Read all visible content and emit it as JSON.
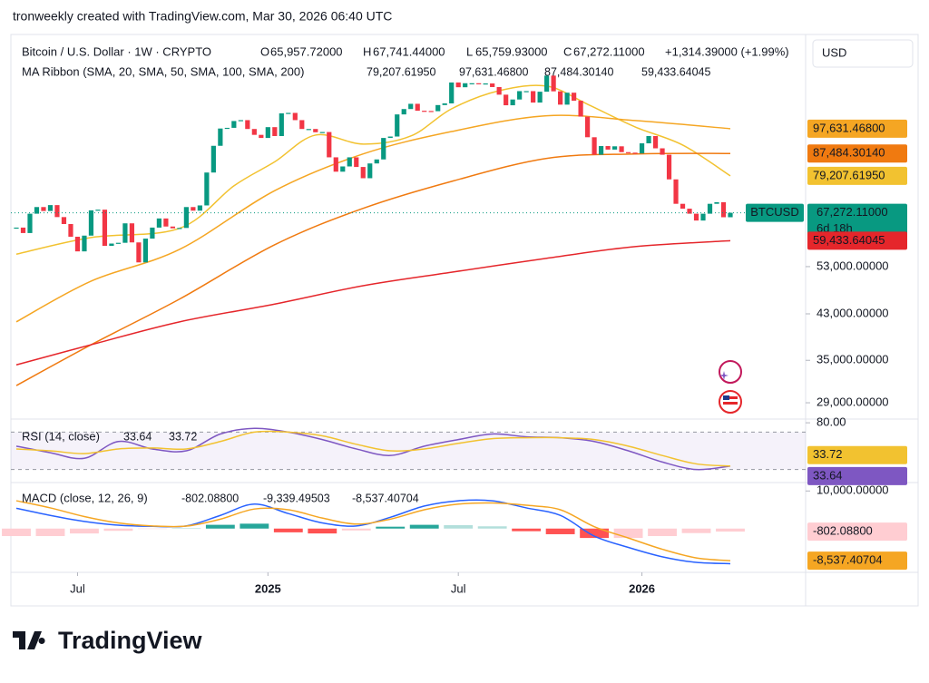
{
  "header": {
    "attribution": "tronweekly created with TradingView.com, Mar 30, 2026 06:40 UTC",
    "currency": "USD",
    "logo": "TradingView"
  },
  "chart_data": [
    {
      "type": "candlestick",
      "title": "Bitcoin / U.S. Dollar · 1W · CRYPTO",
      "legend": [
        {
          "key": "O",
          "value": "65,957.72000"
        },
        {
          "key": "H",
          "value": "67,741.44000"
        },
        {
          "key": "L",
          "value": "65,759.93000"
        },
        {
          "key": "C",
          "value": "67,272.11000"
        }
      ],
      "change": "+1,314.39000 (+1.99%)",
      "log_scale": true,
      "ylim": [
        27200,
        147000
      ],
      "yticks": [
        {
          "value": 53000,
          "label": "53,000.00000"
        },
        {
          "value": 43000,
          "label": "43,000.00000"
        },
        {
          "value": 35000,
          "label": "35,000.00000"
        },
        {
          "value": 29000,
          "label": "29,000.00000"
        }
      ],
      "xticks": [
        {
          "value": 9,
          "label": "Jul"
        },
        {
          "value": 37,
          "label": "2025"
        },
        {
          "value": 65,
          "label": "Jul"
        },
        {
          "value": 92,
          "label": "2026"
        }
      ],
      "up_color": "#089981",
      "down_color": "#f23645",
      "values": [
        63000,
        61500,
        67000,
        69000,
        67800,
        69600,
        66000,
        64000,
        60500,
        56700,
        60800,
        68000,
        68200,
        58100,
        58700,
        58900,
        64200,
        59000,
        54000,
        60000,
        63000,
        65600,
        63300,
        62800,
        62900,
        69000,
        67900,
        69500,
        80400,
        90500,
        97700,
        98000,
        101000,
        101400,
        97500,
        95000,
        93700,
        98300,
        94500,
        104500,
        104700,
        101400,
        97500,
        97500,
        96100,
        96200,
        86000,
        80700,
        82600,
        86000,
        82400,
        78400,
        83700,
        85200,
        93700,
        94300,
        104000,
        106500,
        109000,
        105700,
        105600,
        105500,
        108400,
        109200,
        119800,
        117300,
        119400,
        119400,
        119100,
        119300,
        117400,
        113500,
        108300,
        111100,
        115300,
        115300,
        109600,
        115000,
        123500,
        115200,
        108600,
        114500,
        110500,
        103000,
        94000,
        87000,
        90400,
        89000,
        90300,
        88000,
        87800,
        87500,
        91500,
        94500,
        89500,
        87000,
        78000,
        70000,
        68500,
        67000,
        65000,
        67000,
        70000,
        70500,
        65957.72,
        67272.11
      ],
      "price_tag": {
        "symbol": "BTCUSD",
        "value": 67272.11,
        "label": "67,272.11000",
        "countdown": "6d 18h"
      },
      "ma_title": "MA Ribbon (SMA, 20, SMA, 50, SMA, 100, SMA, 200)",
      "ma_series": [
        {
          "color": "#f2c230",
          "x": [
            0,
            11,
            24,
            32,
            38,
            44,
            51,
            58,
            64,
            71,
            78,
            84,
            91,
            98,
            105
          ],
          "values": [
            56000,
            60300,
            62800,
            75800,
            84300,
            94900,
            91200,
            94500,
            106600,
            115500,
            117900,
            108800,
            98400,
            90800,
            79207.6195
          ],
          "value_labels": [
            null,
            null,
            null,
            null,
            null,
            null,
            null,
            null,
            null,
            null,
            null,
            null,
            null,
            null,
            "79,207.61950"
          ]
        },
        {
          "color": "#f5a623",
          "x": [
            0,
            11,
            24,
            38,
            51,
            64,
            78,
            91,
            105
          ],
          "values": [
            41500,
            49700,
            57200,
            74200,
            87300,
            96400,
            103400,
            101200,
            97631.468
          ],
          "value_labels": [
            null,
            null,
            null,
            null,
            null,
            null,
            null,
            null,
            "97,631.46800"
          ]
        },
        {
          "color": "#f07a10",
          "x": [
            0,
            11,
            24,
            38,
            51,
            64,
            78,
            91,
            105
          ],
          "values": [
            31300,
            37500,
            45900,
            58400,
            68600,
            77300,
            85600,
            87300,
            87484.3014
          ],
          "value_labels": [
            null,
            null,
            null,
            null,
            null,
            null,
            null,
            null,
            "87,484.30140"
          ]
        },
        {
          "color": "#e5262b",
          "x": [
            0,
            11,
            24,
            38,
            51,
            64,
            78,
            91,
            105
          ],
          "values": [
            34300,
            37500,
            41500,
            44900,
            48700,
            51700,
            55000,
            57900,
            59433.64045
          ],
          "value_labels": [
            null,
            null,
            null,
            null,
            null,
            null,
            null,
            null,
            "59,433.64045"
          ]
        }
      ]
    },
    {
      "type": "line",
      "title": "RSI (14, close)",
      "ylim": [
        17,
        84
      ],
      "yticks": [
        {
          "value": 80,
          "label": "80.00"
        }
      ],
      "band": [
        30,
        70
      ],
      "series": [
        {
          "color": "#7e57c2",
          "x": [
            0,
            5,
            10,
            15,
            20,
            25,
            30,
            35,
            40,
            45,
            50,
            55,
            60,
            65,
            70,
            75,
            80,
            85,
            90,
            95,
            100,
            105
          ],
          "values": [
            55,
            48,
            42,
            60,
            52,
            50,
            68,
            74,
            70,
            62,
            52,
            45,
            55,
            62,
            68,
            65,
            64,
            60,
            50,
            38,
            30,
            33.64
          ],
          "value_labels": [
            null,
            null,
            null,
            null,
            null,
            null,
            null,
            null,
            null,
            null,
            null,
            null,
            null,
            null,
            null,
            null,
            null,
            null,
            null,
            null,
            null,
            "33.64"
          ]
        },
        {
          "color": "#f2c230",
          "x": [
            0,
            5,
            10,
            15,
            20,
            25,
            30,
            35,
            40,
            45,
            50,
            55,
            60,
            65,
            70,
            75,
            80,
            85,
            90,
            95,
            100,
            105
          ],
          "values": [
            52,
            50,
            47,
            52,
            53,
            52,
            60,
            70,
            70,
            66,
            57,
            50,
            52,
            58,
            63,
            64,
            64,
            62,
            55,
            45,
            36,
            33.72
          ],
          "value_labels": [
            null,
            null,
            null,
            null,
            null,
            null,
            null,
            null,
            null,
            null,
            null,
            null,
            null,
            null,
            null,
            null,
            null,
            null,
            null,
            null,
            null,
            "33.72"
          ]
        }
      ]
    },
    {
      "type": "macd",
      "title": "MACD (close, 12, 26, 9)",
      "ylim": [
        -11400,
        12000
      ],
      "yticks": [
        {
          "value": 10000,
          "label": "10,000.00000"
        }
      ],
      "histogram": {
        "colors": [
          "#26a69a",
          "#b2dfdb",
          "#ffcdd2",
          "#ff5252"
        ],
        "x": [
          0,
          5,
          10,
          15,
          20,
          25,
          30,
          35,
          40,
          45,
          50,
          55,
          60,
          65,
          70,
          75,
          80,
          85,
          90,
          95,
          100,
          105
        ],
        "values": [
          -2000,
          -2000,
          -1300,
          -600,
          -100,
          50,
          1000,
          1300,
          -1000,
          -1300,
          -500,
          500,
          1000,
          900,
          600,
          -700,
          -1500,
          -2500,
          -2500,
          -2000,
          -1200,
          -802.088
        ],
        "value_labels": [
          null,
          null,
          null,
          null,
          null,
          null,
          null,
          null,
          null,
          null,
          null,
          null,
          null,
          null,
          null,
          null,
          null,
          null,
          null,
          null,
          null,
          "-802.08800"
        ],
        "tag_color": "#ffcdd2"
      },
      "series": [
        {
          "color": "#2962ff",
          "x": [
            0,
            5,
            10,
            15,
            20,
            25,
            30,
            35,
            40,
            45,
            50,
            55,
            60,
            65,
            70,
            75,
            80,
            85,
            90,
            95,
            100,
            105
          ],
          "values": [
            5400,
            3500,
            1900,
            900,
            600,
            700,
            3500,
            6500,
            4000,
            1500,
            700,
            3000,
            6000,
            7400,
            7400,
            5500,
            3500,
            -2000,
            -5000,
            -7500,
            -9000,
            -9339.49503
          ],
          "value_labels": [
            null,
            null,
            null,
            null,
            null,
            null,
            null,
            null,
            null,
            null,
            null,
            null,
            null,
            null,
            null,
            null,
            null,
            null,
            null,
            null,
            null,
            "-9,339.49503"
          ]
        },
        {
          "color": "#f5a623",
          "x": [
            0,
            5,
            10,
            15,
            20,
            25,
            30,
            35,
            40,
            45,
            50,
            55,
            60,
            65,
            70,
            75,
            80,
            85,
            90,
            95,
            100,
            105
          ],
          "values": [
            7400,
            5500,
            3200,
            1500,
            700,
            650,
            2500,
            5200,
            5000,
            2800,
            1200,
            2500,
            5000,
            6500,
            6800,
            6200,
            5000,
            500,
            -2500,
            -5500,
            -7800,
            -8537.40704
          ],
          "value_labels": [
            null,
            null,
            null,
            null,
            null,
            null,
            null,
            null,
            null,
            null,
            null,
            null,
            null,
            null,
            null,
            null,
            null,
            null,
            null,
            null,
            null,
            "-8,537.40704"
          ]
        }
      ]
    }
  ]
}
